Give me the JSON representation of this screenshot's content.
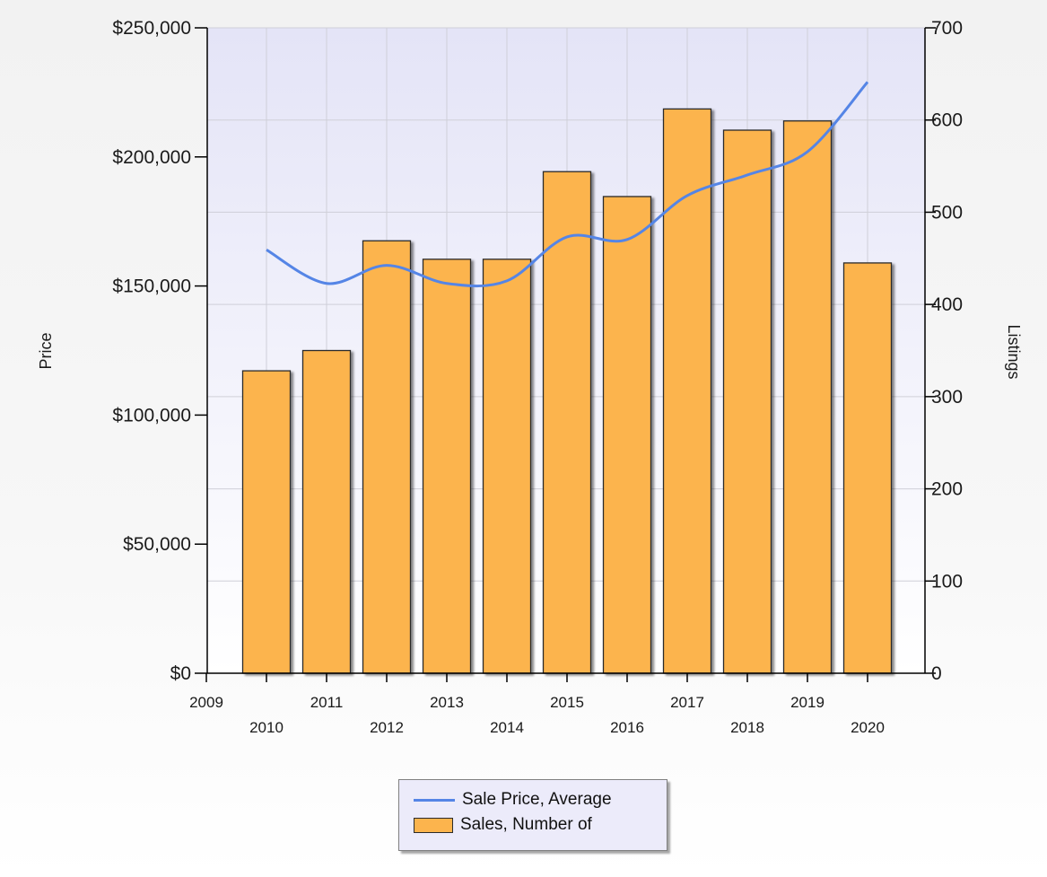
{
  "chart_data": {
    "type": "bar",
    "categories": [
      "2010",
      "2011",
      "2012",
      "2013",
      "2014",
      "2015",
      "2016",
      "2017",
      "2018",
      "2019",
      "2020"
    ],
    "series": [
      {
        "name": "Sales, Number of",
        "type": "bar",
        "axis": "right",
        "color": "#fcb44d",
        "values": [
          328,
          350,
          469,
          449,
          449,
          544,
          517,
          612,
          589,
          599,
          445
        ]
      },
      {
        "name": "Sale Price, Average",
        "type": "line",
        "axis": "left",
        "color": "#5585e6",
        "values": [
          164000,
          151000,
          158000,
          151000,
          152000,
          169000,
          168000,
          185000,
          193000,
          202000,
          229000
        ]
      }
    ],
    "x_axis_labels": [
      "2009",
      "2010",
      "2011",
      "2012",
      "2013",
      "2014",
      "2015",
      "2016",
      "2017",
      "2018",
      "2019",
      "2020"
    ],
    "ylabel": "Price",
    "ylabel_right": "Listings",
    "ylim": [
      0,
      250000
    ],
    "ylim_right": [
      0,
      700
    ],
    "y_ticks": [
      "$0",
      "$50,000",
      "$100,000",
      "$150,000",
      "$200,000",
      "$250,000"
    ],
    "y_ticks_right": [
      "0",
      "100",
      "200",
      "300",
      "400",
      "500",
      "600",
      "700"
    ],
    "grid": true,
    "legend_position": "bottom-center"
  }
}
